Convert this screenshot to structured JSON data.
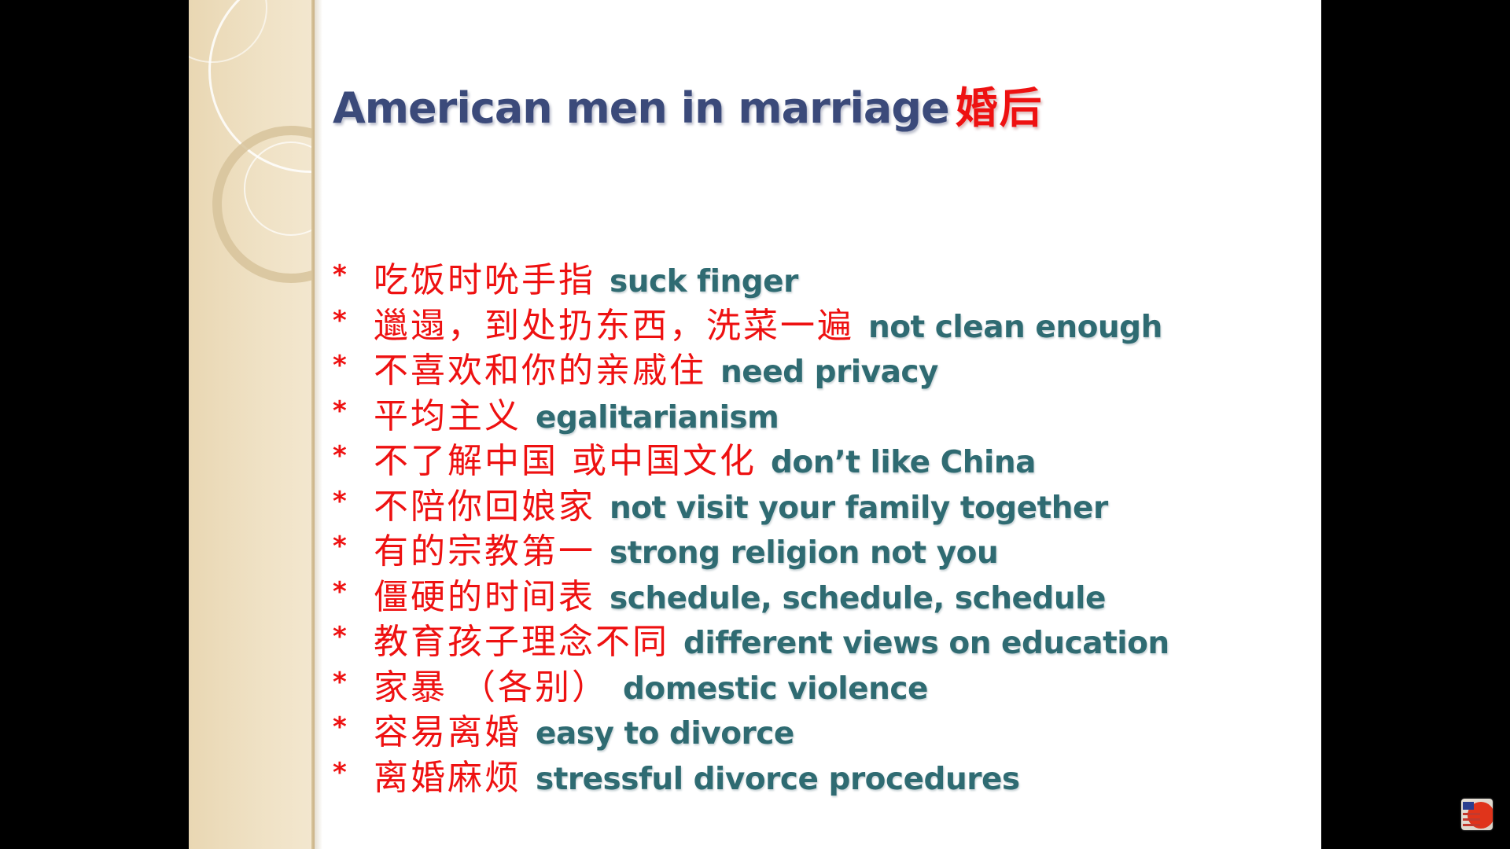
{
  "slide": {
    "title_en": "American men in marriage",
    "title_cn": "婚后",
    "bullet_symbol": "*",
    "items": [
      {
        "cn": "吃饭时吮手指",
        "en": "suck finger"
      },
      {
        "cn": "邋遢，到处扔东西，洗菜一遍",
        "en": "not clean enough"
      },
      {
        "cn": "不喜欢和你的亲戚住",
        "en": "need privacy"
      },
      {
        "cn": "平均主义",
        "en": "egalitarianism"
      },
      {
        "cn": "不了解中国 或中国文化",
        "en": "don’t like China"
      },
      {
        "cn": "不陪你回娘家",
        "en": "not visit your family together"
      },
      {
        "cn": "有的宗教第一",
        "en": "strong religion not you"
      },
      {
        "cn": "僵硬的时间表",
        "en": "schedule, schedule, schedule"
      },
      {
        "cn": "教育孩子理念不同",
        "en": "different views on education"
      },
      {
        "cn": "家暴 （各别）",
        "en": "domestic violence"
      },
      {
        "cn": "容易离婚",
        "en": "easy to divorce"
      },
      {
        "cn": "离婚麻烦",
        "en": "stressful divorce procedures"
      }
    ]
  },
  "colors": {
    "title_en": "#3b4a7a",
    "chinese_text": "#ee1111",
    "english_text": "#2f6b72",
    "sidebar": "#efe1c4",
    "background": "#000000"
  },
  "icons": {
    "corner": "channel-logo-icon"
  }
}
